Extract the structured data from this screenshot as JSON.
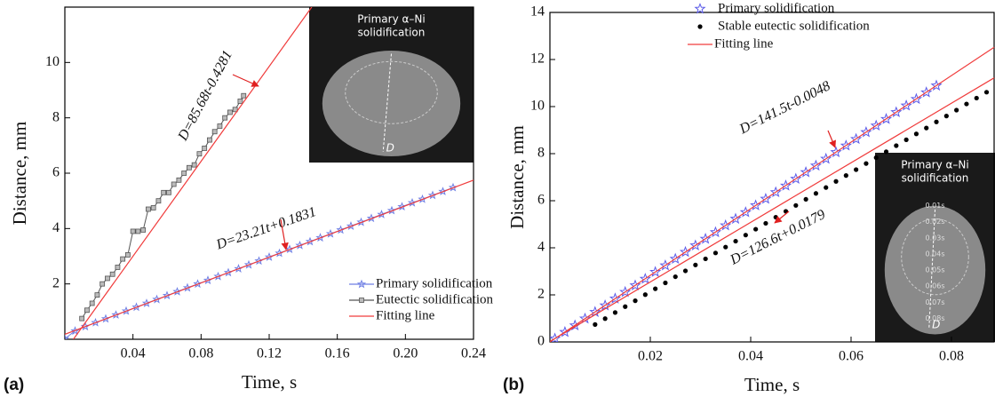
{
  "chart_data": [
    {
      "type": "line",
      "panel_label": "(a)",
      "x_label": "Time, s",
      "y_label": "Distance, mm",
      "xlim": [
        0,
        0.24
      ],
      "ylim": [
        0,
        12
      ],
      "xticks": [
        0.04,
        0.08,
        0.12,
        0.16,
        {
          "value": 0.2,
          "label": "0.20"
        },
        0.24
      ],
      "yticks": [
        2,
        4,
        6,
        8,
        10
      ],
      "legend": "lower right",
      "series": [
        {
          "name": "Primary solidification",
          "color": "#6f7fe4",
          "marker": "star-line",
          "x": [
            0,
            0.006,
            0.012,
            0.018,
            0.024,
            0.03,
            0.036,
            0.042,
            0.048,
            0.054,
            0.06,
            0.066,
            0.072,
            0.078,
            0.084,
            0.09,
            0.096,
            0.102,
            0.108,
            0.114,
            0.12,
            0.126,
            0.132,
            0.138,
            0.144,
            0.15,
            0.156,
            0.162,
            0.168,
            0.174,
            0.18,
            0.186,
            0.192,
            0.198,
            0.204,
            0.21,
            0.216,
            0.222,
            0.228
          ],
          "values": [
            0.02,
            0.3,
            0.46,
            0.6,
            0.74,
            0.88,
            1.02,
            1.16,
            1.3,
            1.44,
            1.58,
            1.72,
            1.86,
            2.0,
            2.13,
            2.27,
            2.41,
            2.55,
            2.69,
            2.83,
            2.97,
            3.11,
            3.25,
            3.39,
            3.53,
            3.67,
            3.81,
            3.95,
            4.09,
            4.23,
            4.37,
            4.51,
            4.65,
            4.79,
            4.93,
            5.06,
            5.2,
            5.34,
            5.48
          ]
        },
        {
          "name": "Eutectic solidification",
          "color": "#555555",
          "marker": "square-line",
          "x": [
            0.01,
            0.013,
            0.016,
            0.019,
            0.022,
            0.025,
            0.028,
            0.031,
            0.034,
            0.037,
            0.04,
            0.043,
            0.046,
            0.049,
            0.052,
            0.055,
            0.058,
            0.061,
            0.064,
            0.067,
            0.07,
            0.073,
            0.076,
            0.079,
            0.082,
            0.085,
            0.088,
            0.091,
            0.094,
            0.097,
            0.1,
            0.103,
            0.105
          ],
          "values": [
            0.75,
            1.05,
            1.3,
            1.6,
            2.0,
            2.2,
            2.35,
            2.6,
            2.9,
            3.05,
            3.9,
            3.9,
            3.95,
            4.7,
            4.75,
            5.0,
            5.3,
            5.3,
            5.6,
            5.75,
            6.0,
            6.2,
            6.3,
            6.7,
            6.9,
            7.2,
            7.5,
            7.7,
            8.0,
            8.2,
            8.3,
            8.6,
            8.8
          ]
        },
        {
          "name": "Fitting line",
          "color": "#f03c3c",
          "marker": "line",
          "x": [
            0,
            0.24,
            null,
            0.005,
            0.145
          ],
          "values": [
            0.18,
            5.75,
            null,
            0,
            12
          ]
        }
      ],
      "annotations": [
        "D=85.68t-0.4281",
        "D=23.21t+0.1831"
      ],
      "inset_title": [
        "Primary α–Ni",
        "solidification"
      ],
      "inset_labels": [
        "D"
      ]
    },
    {
      "type": "scatter",
      "panel_label": "(b)",
      "x_label": "Time, s",
      "y_label": "Distance, mm",
      "xlim": [
        0,
        0.0885
      ],
      "ylim": [
        0,
        14
      ],
      "xticks": [
        0.02,
        0.04,
        0.06,
        0.08
      ],
      "yticks": [
        0,
        2,
        4,
        6,
        8,
        10,
        12,
        14
      ],
      "legend": "upper center",
      "series": [
        {
          "name": "Primary solidification",
          "color": "#5b5be8",
          "marker": "star",
          "x": [
            0.001,
            0.003,
            0.005,
            0.007,
            0.009,
            0.011,
            0.013,
            0.015,
            0.017,
            0.019,
            0.021,
            0.023,
            0.025,
            0.027,
            0.029,
            0.031,
            0.033,
            0.035,
            0.037,
            0.039,
            0.041,
            0.043,
            0.045,
            0.047,
            0.049,
            0.051,
            0.053,
            0.055,
            0.057,
            0.059,
            0.061,
            0.063,
            0.065,
            0.067,
            0.069,
            0.071,
            0.073,
            0.075,
            0.077
          ],
          "values": [
            0.14,
            0.42,
            0.7,
            0.99,
            1.27,
            1.55,
            1.84,
            2.12,
            2.4,
            2.68,
            2.97,
            3.25,
            3.53,
            3.82,
            4.1,
            4.38,
            4.66,
            4.95,
            5.23,
            5.51,
            5.8,
            6.08,
            6.36,
            6.64,
            6.93,
            7.21,
            7.49,
            7.78,
            8.06,
            8.34,
            8.62,
            8.91,
            9.19,
            9.47,
            9.76,
            10.04,
            10.32,
            10.6,
            10.89
          ]
        },
        {
          "name": "Stable eutectic solidification",
          "color": "#000000",
          "marker": "dot",
          "x": [
            0.009,
            0.011,
            0.013,
            0.015,
            0.017,
            0.019,
            0.021,
            0.023,
            0.025,
            0.027,
            0.029,
            0.031,
            0.033,
            0.035,
            0.037,
            0.039,
            0.041,
            0.043,
            0.045,
            0.047,
            0.049,
            0.051,
            0.053,
            0.055,
            0.057,
            0.059,
            0.061,
            0.063,
            0.065,
            0.067,
            0.069,
            0.071,
            0.073,
            0.075,
            0.077,
            0.079,
            0.081,
            0.083,
            0.085,
            0.087
          ],
          "values": [
            0.74,
            0.99,
            1.25,
            1.5,
            1.75,
            2.01,
            2.26,
            2.51,
            2.77,
            3.02,
            3.27,
            3.53,
            3.78,
            4.03,
            4.28,
            4.54,
            4.79,
            5.04,
            5.3,
            5.55,
            5.8,
            6.06,
            6.31,
            6.56,
            6.82,
            7.07,
            7.32,
            7.58,
            7.83,
            8.08,
            8.34,
            8.59,
            8.84,
            9.09,
            9.35,
            9.6,
            9.85,
            10.11,
            10.36,
            10.61
          ]
        },
        {
          "name": "Fitting line",
          "color": "#f03c3c",
          "marker": "line",
          "x": [
            0,
            0.0885,
            null,
            0,
            0.0885
          ],
          "values": [
            0,
            12.52,
            null,
            0.02,
            11.22
          ]
        }
      ],
      "annotations": [
        "D=141.5t-0.0048",
        "D=126.6t+0.0179"
      ],
      "inset_title": [
        "Primary α–Ni",
        "solidification"
      ],
      "inset_labels": [
        "0.01s",
        "0.02s",
        "0.03s",
        "0.04s",
        "0.05s",
        "0.06s",
        "0.07s",
        "0.08s",
        "D"
      ]
    }
  ]
}
